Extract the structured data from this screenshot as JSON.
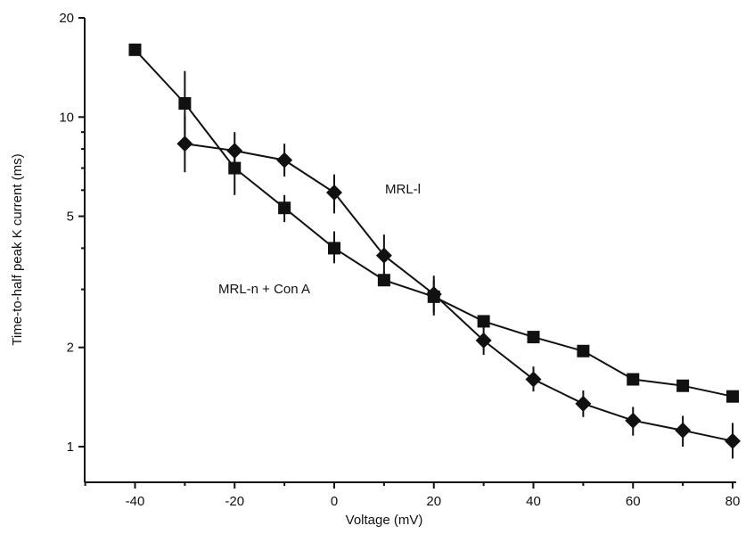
{
  "chart_data": {
    "type": "line",
    "title": "",
    "xlabel": "Voltage (mV)",
    "ylabel": "Time-to-half peak K current (ms)",
    "x_scale": "linear",
    "y_scale": "log",
    "xlim": [
      -50,
      80
    ],
    "ylim": [
      0.8,
      20
    ],
    "x_ticks": [
      -40,
      -20,
      0,
      20,
      40,
      60,
      80
    ],
    "x_tick_labels": [
      "-40",
      "-20",
      "0",
      "20",
      "40",
      "60",
      "80"
    ],
    "y_labeled_ticks": [
      1,
      2,
      5,
      10,
      20
    ],
    "y_tick_labels": [
      "1",
      "2",
      "5",
      "10",
      "20"
    ],
    "y_minor_ticks": [
      3,
      4,
      6,
      7,
      8,
      9
    ],
    "grid": false,
    "legend": "none",
    "series": [
      {
        "name": "MRL-l",
        "marker": "diamond",
        "x": [
          -30,
          -20,
          -10,
          0,
          10,
          20,
          30,
          40,
          50,
          60,
          70,
          80
        ],
        "y": [
          8.3,
          7.9,
          7.4,
          5.9,
          3.8,
          2.9,
          2.1,
          1.6,
          1.35,
          1.2,
          1.12,
          1.04
        ],
        "err_low": [
          6.8,
          6.9,
          6.6,
          5.1,
          3.3,
          2.5,
          1.9,
          1.47,
          1.23,
          1.08,
          1.0,
          0.92
        ],
        "err_high": [
          10.1,
          9.0,
          8.3,
          6.7,
          4.4,
          3.3,
          2.35,
          1.75,
          1.48,
          1.32,
          1.24,
          1.18
        ]
      },
      {
        "name": "MRL-n + Con A",
        "marker": "square",
        "x": [
          -40,
          -30,
          -20,
          -10,
          0,
          10,
          20,
          30,
          40,
          50,
          60,
          70,
          80
        ],
        "y": [
          16.0,
          11.0,
          7.0,
          5.3,
          4.0,
          3.2,
          2.85,
          2.4,
          2.15,
          1.95,
          1.6,
          1.53,
          1.42
        ],
        "err_low": [
          16.0,
          8.8,
          5.8,
          4.8,
          3.6,
          3.1,
          2.55,
          2.4,
          2.15,
          1.95,
          1.6,
          1.53,
          1.42
        ],
        "err_high": [
          16.0,
          13.8,
          8.1,
          5.8,
          4.5,
          3.4,
          3.2,
          2.4,
          2.15,
          1.95,
          1.6,
          1.53,
          1.42
        ]
      }
    ],
    "annotations": [
      {
        "text": "MRL-l",
        "series": "MRL-l"
      },
      {
        "text": "MRL-n + Con A",
        "series": "MRL-n + Con A"
      }
    ]
  }
}
